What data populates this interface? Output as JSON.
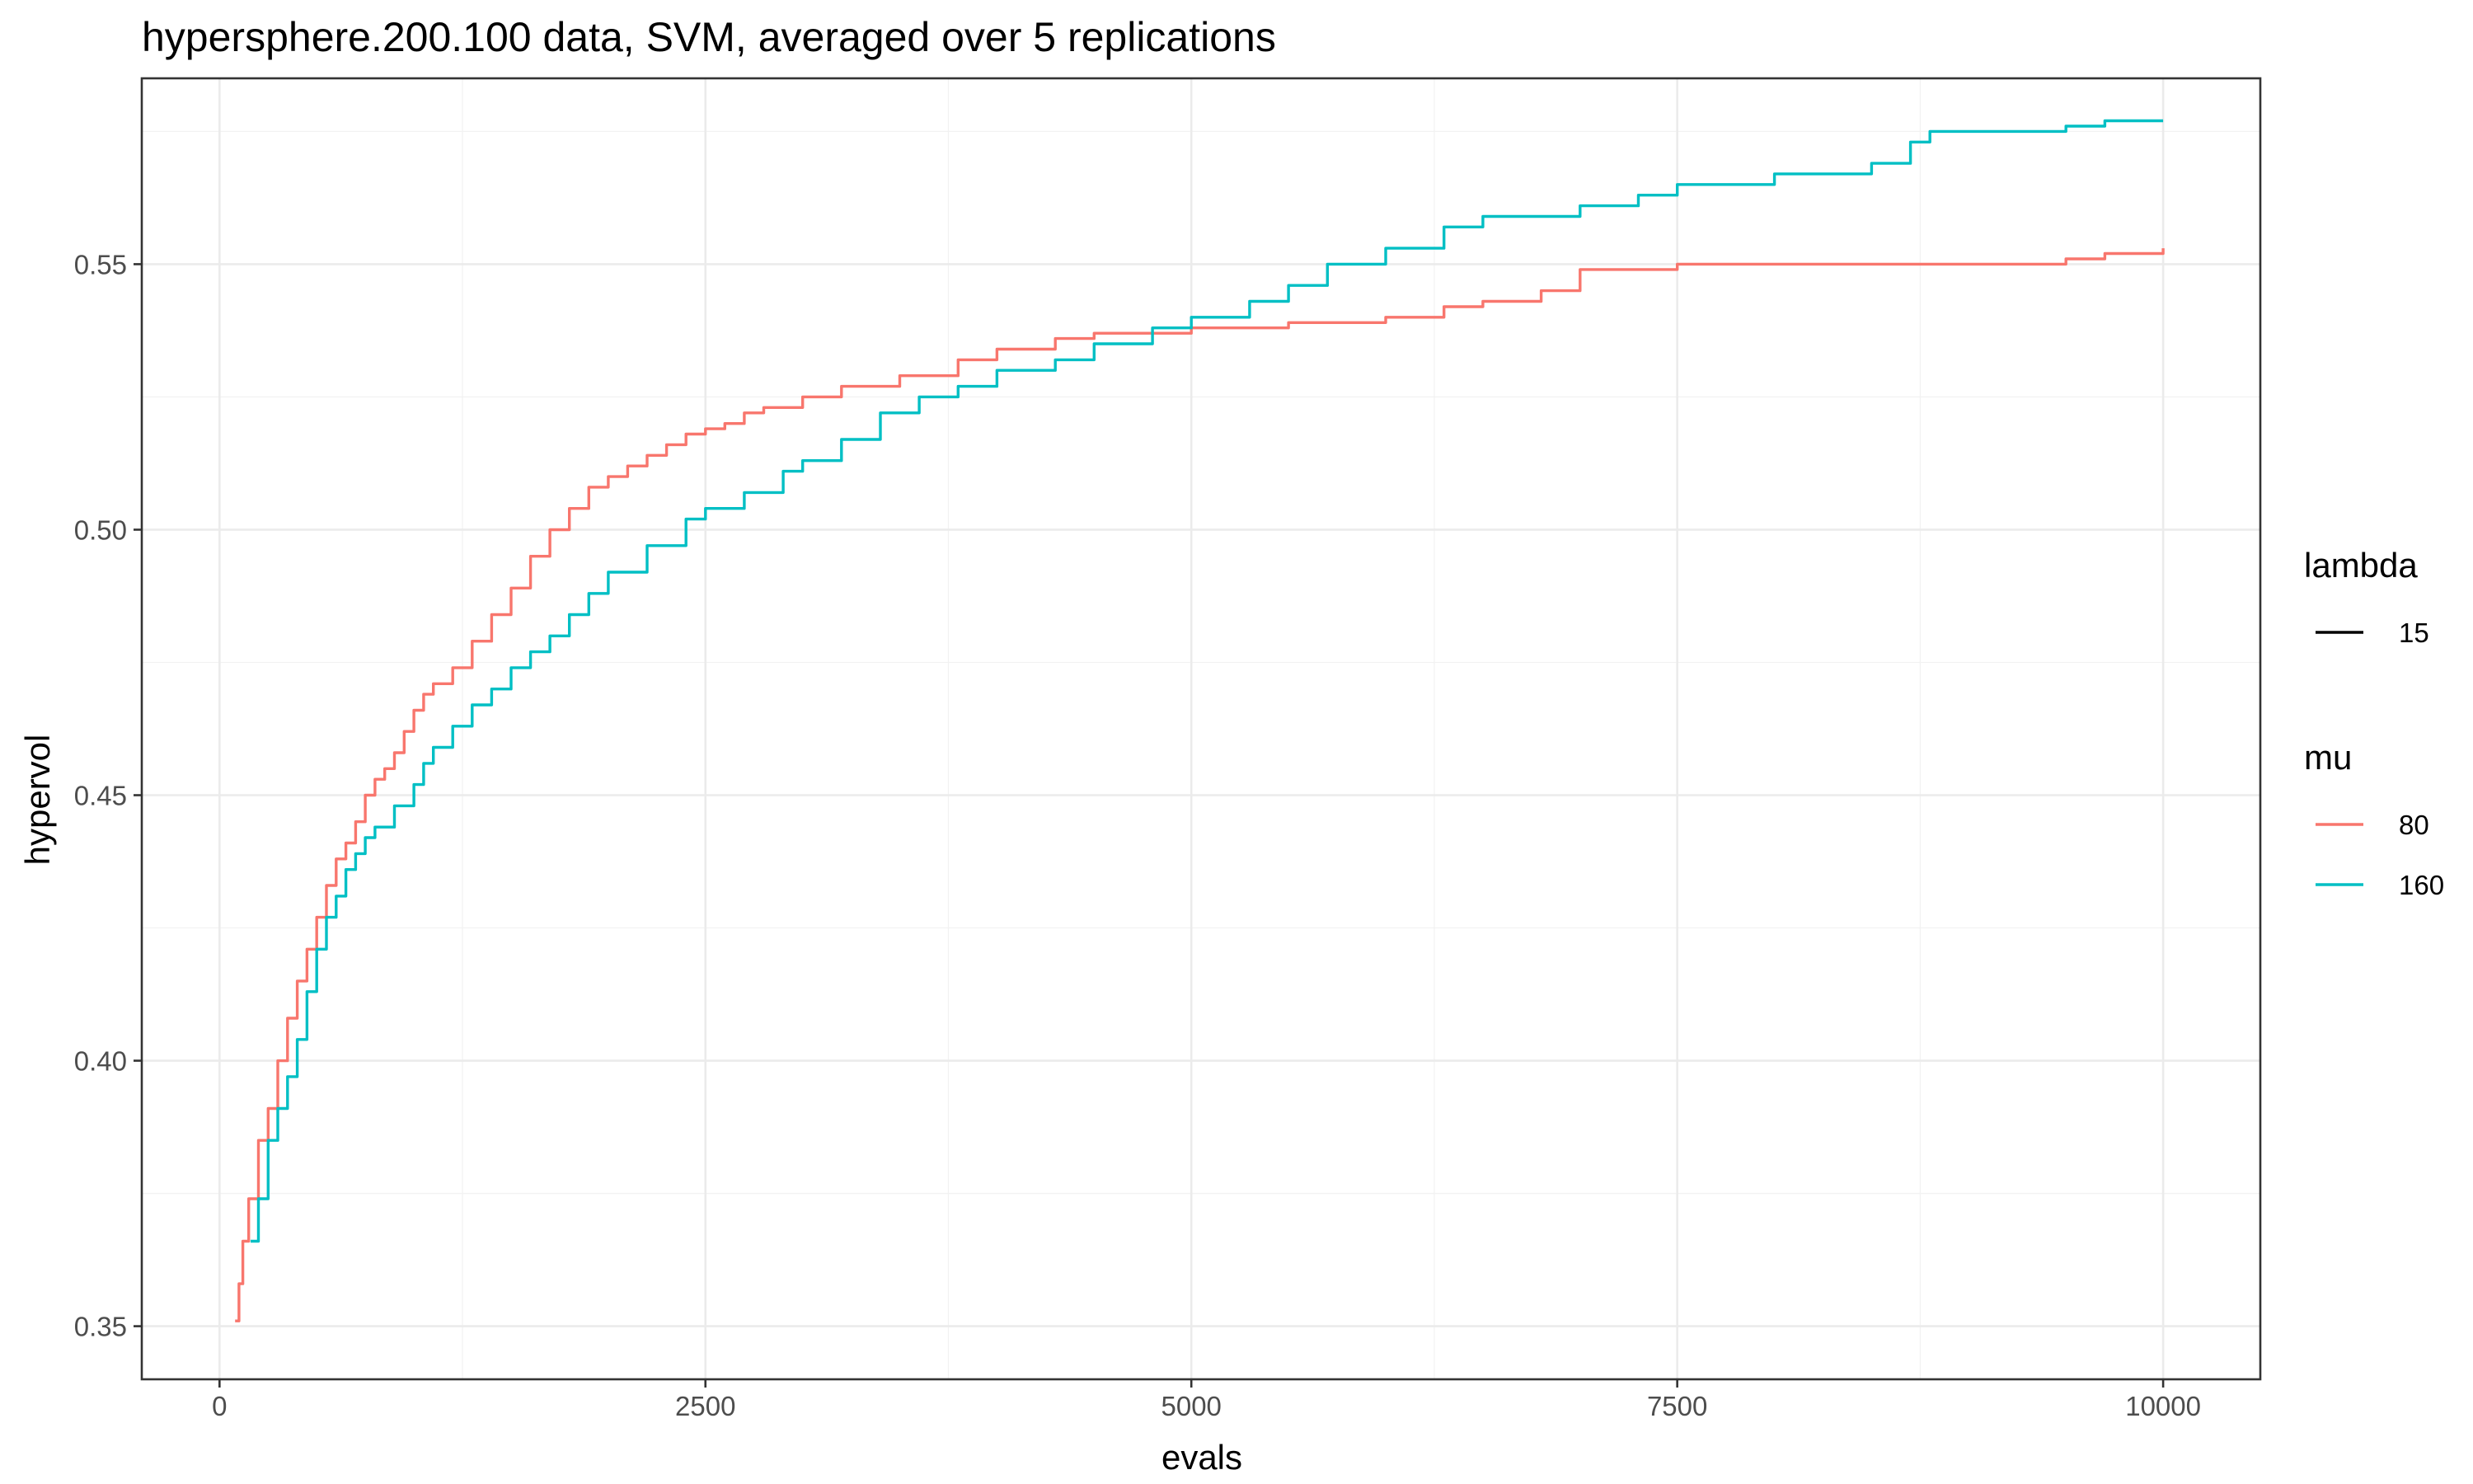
{
  "chart_data": {
    "type": "line",
    "title": "hypersphere.200.100 data, SVM, averaged over 5 replications",
    "xlabel": "evals",
    "ylabel": "hypervol",
    "xlim": [
      -400,
      10500
    ],
    "ylim": [
      0.34,
      0.585
    ],
    "x_ticks": [
      0,
      2500,
      5000,
      7500,
      10000
    ],
    "x_tick_labels": [
      "0",
      "2500",
      "5000",
      "7500",
      "10000"
    ],
    "y_ticks": [
      0.35,
      0.4,
      0.45,
      0.5,
      0.55
    ],
    "y_tick_labels": [
      "0.35",
      "0.40",
      "0.45",
      "0.50",
      "0.55"
    ],
    "grid": true,
    "legend_position": "right",
    "legend": [
      {
        "title": "lambda",
        "items": [
          {
            "label": "15",
            "color": "#000000"
          }
        ]
      },
      {
        "title": "mu",
        "items": [
          {
            "label": "80",
            "color": "#F8766D"
          },
          {
            "label": "160",
            "color": "#00BFC4"
          }
        ]
      }
    ],
    "series": [
      {
        "name": "80",
        "color": "#F8766D",
        "x": [
          80,
          100,
          120,
          150,
          200,
          250,
          300,
          350,
          400,
          450,
          500,
          550,
          600,
          650,
          700,
          750,
          800,
          850,
          900,
          950,
          1000,
          1050,
          1100,
          1200,
          1300,
          1400,
          1500,
          1600,
          1700,
          1800,
          1900,
          2000,
          2100,
          2200,
          2300,
          2400,
          2500,
          2600,
          2700,
          2800,
          3000,
          3200,
          3500,
          3800,
          4000,
          4300,
          4500,
          5000,
          5500,
          6000,
          6300,
          6500,
          6800,
          7000,
          7500,
          8000,
          9000,
          9500,
          9700,
          10000
        ],
        "y": [
          0.351,
          0.358,
          0.366,
          0.374,
          0.385,
          0.391,
          0.4,
          0.408,
          0.415,
          0.421,
          0.427,
          0.433,
          0.438,
          0.441,
          0.445,
          0.45,
          0.453,
          0.455,
          0.458,
          0.462,
          0.466,
          0.469,
          0.471,
          0.474,
          0.479,
          0.484,
          0.489,
          0.495,
          0.5,
          0.504,
          0.508,
          0.51,
          0.512,
          0.514,
          0.516,
          0.518,
          0.519,
          0.52,
          0.522,
          0.523,
          0.525,
          0.527,
          0.529,
          0.532,
          0.534,
          0.536,
          0.537,
          0.538,
          0.539,
          0.54,
          0.542,
          0.543,
          0.545,
          0.549,
          0.55,
          0.55,
          0.55,
          0.551,
          0.552,
          0.553
        ]
      },
      {
        "name": "160",
        "color": "#00BFC4",
        "x": [
          160,
          200,
          250,
          300,
          350,
          400,
          450,
          500,
          550,
          600,
          650,
          700,
          750,
          800,
          900,
          1000,
          1050,
          1100,
          1200,
          1300,
          1400,
          1500,
          1600,
          1700,
          1800,
          1900,
          2000,
          2200,
          2400,
          2500,
          2700,
          2900,
          3000,
          3200,
          3400,
          3600,
          3800,
          4000,
          4300,
          4500,
          4800,
          5000,
          5300,
          5500,
          5700,
          6000,
          6300,
          6500,
          7000,
          7300,
          7500,
          8000,
          8500,
          8700,
          8800,
          9000,
          9500,
          9700,
          10000
        ],
        "y": [
          0.366,
          0.374,
          0.385,
          0.391,
          0.397,
          0.404,
          0.413,
          0.421,
          0.427,
          0.431,
          0.436,
          0.439,
          0.442,
          0.444,
          0.448,
          0.452,
          0.456,
          0.459,
          0.463,
          0.467,
          0.47,
          0.474,
          0.477,
          0.48,
          0.484,
          0.488,
          0.492,
          0.497,
          0.502,
          0.504,
          0.507,
          0.511,
          0.513,
          0.517,
          0.522,
          0.525,
          0.527,
          0.53,
          0.532,
          0.535,
          0.538,
          0.54,
          0.543,
          0.546,
          0.55,
          0.553,
          0.557,
          0.559,
          0.561,
          0.563,
          0.565,
          0.567,
          0.569,
          0.573,
          0.575,
          0.575,
          0.576,
          0.577,
          0.577
        ]
      }
    ]
  }
}
